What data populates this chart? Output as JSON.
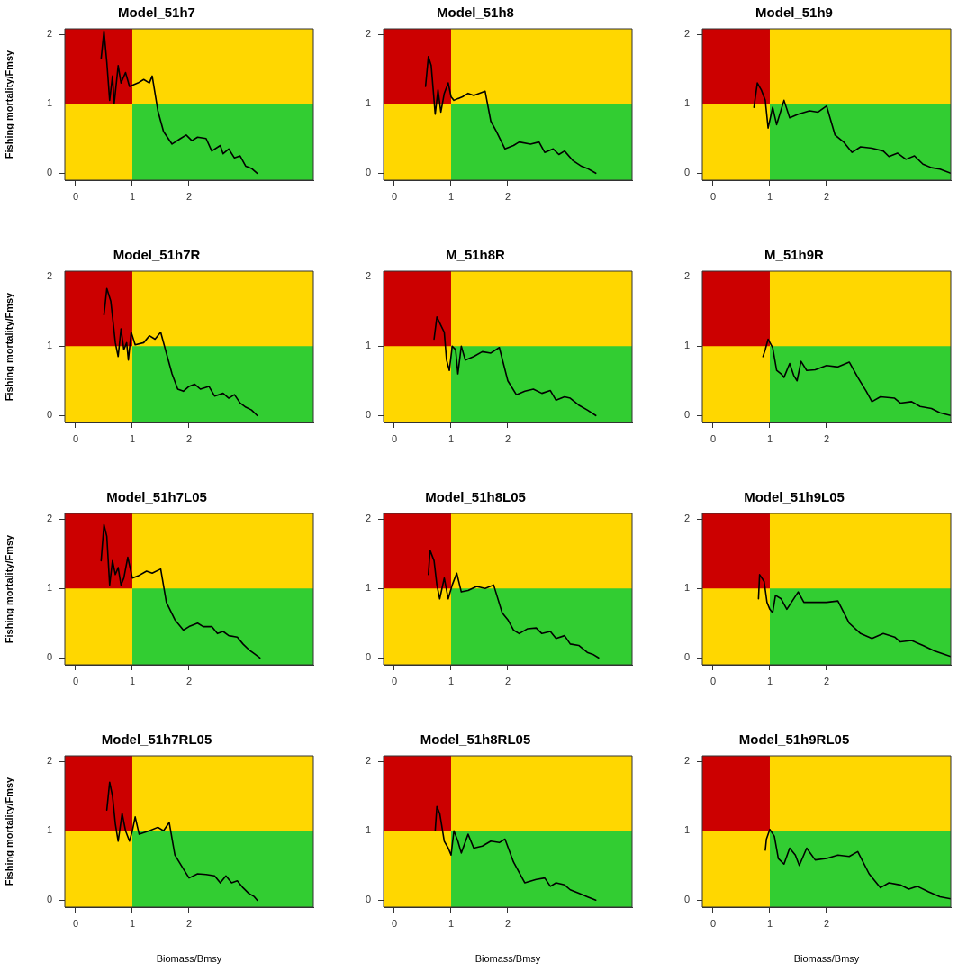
{
  "chart_data": [
    {
      "type": "line",
      "title": "Model_51h7",
      "ylabel": "Fishing mortality/Fmsy",
      "xlim": [
        -0.19,
        4.19
      ],
      "ylim": [
        -0.1,
        2.08
      ],
      "xticks": [
        0,
        1,
        2
      ],
      "yticks": [
        0,
        1,
        2
      ],
      "marker": "none",
      "line_style": "solid",
      "bands": [
        {
          "axis": "y",
          "from": -0.1,
          "to": 2.08,
          "color": "#ffd700"
        },
        {
          "axis": "x",
          "from": -0.19,
          "to": 1,
          "color": "#cc0000"
        },
        {
          "axis": "y",
          "from": -0.1,
          "to": 1,
          "color": "#32cd32"
        }
      ],
      "series": [
        {
          "color": "#000000",
          "x": [
            0.45,
            0.5,
            0.55,
            0.6,
            0.65,
            0.68,
            0.75,
            0.8,
            0.88,
            0.95,
            1.1,
            1.2,
            1.3,
            1.35,
            1.45,
            1.55,
            1.7,
            1.85,
            1.95,
            2.05,
            2.15,
            2.3,
            2.4,
            2.55,
            2.6,
            2.7,
            2.8,
            2.9,
            3.0,
            3.1,
            3.2
          ],
          "values": [
            1.65,
            2.05,
            1.6,
            1.05,
            1.4,
            1.0,
            1.55,
            1.3,
            1.45,
            1.25,
            1.3,
            1.35,
            1.3,
            1.4,
            0.9,
            0.6,
            0.42,
            0.5,
            0.55,
            0.47,
            0.52,
            0.5,
            0.32,
            0.4,
            0.28,
            0.35,
            0.22,
            0.25,
            0.1,
            0.07,
            0.0
          ]
        }
      ]
    },
    {
      "type": "line",
      "title": "Model_51h8",
      "xlim": [
        -0.19,
        4.19
      ],
      "ylim": [
        -0.1,
        2.08
      ],
      "xticks": [
        0,
        1,
        2
      ],
      "yticks": [
        0,
        1,
        2
      ],
      "marker": "none",
      "line_style": "solid",
      "bands": [
        {
          "axis": "y",
          "from": -0.1,
          "to": 2.08,
          "color": "#ffd700"
        },
        {
          "axis": "x",
          "from": -0.19,
          "to": 1,
          "color": "#cc0000"
        },
        {
          "axis": "y",
          "from": -0.1,
          "to": 1,
          "color": "#32cd32"
        }
      ],
      "series": [
        {
          "color": "#000000",
          "x": [
            0.55,
            0.6,
            0.65,
            0.72,
            0.77,
            0.82,
            0.88,
            0.95,
            1.0,
            1.05,
            1.2,
            1.3,
            1.4,
            1.6,
            1.7,
            1.8,
            1.95,
            2.1,
            2.2,
            2.4,
            2.55,
            2.65,
            2.8,
            2.9,
            3.0,
            3.15,
            3.3,
            3.4,
            3.55
          ],
          "values": [
            1.25,
            1.68,
            1.55,
            0.85,
            1.2,
            0.88,
            1.15,
            1.3,
            1.1,
            1.05,
            1.1,
            1.15,
            1.12,
            1.18,
            0.75,
            0.6,
            0.35,
            0.4,
            0.45,
            0.42,
            0.45,
            0.3,
            0.35,
            0.27,
            0.32,
            0.18,
            0.1,
            0.07,
            0.0
          ]
        }
      ]
    },
    {
      "type": "line",
      "title": "Model_51h9",
      "xlim": [
        -0.19,
        4.19
      ],
      "ylim": [
        -0.1,
        2.08
      ],
      "xticks": [
        0,
        1,
        2
      ],
      "yticks": [
        0,
        1,
        2
      ],
      "marker": "none",
      "line_style": "solid",
      "bands": [
        {
          "axis": "y",
          "from": -0.1,
          "to": 2.08,
          "color": "#ffd700"
        },
        {
          "axis": "x",
          "from": -0.19,
          "to": 1,
          "color": "#cc0000"
        },
        {
          "axis": "y",
          "from": -0.1,
          "to": 1,
          "color": "#32cd32"
        }
      ],
      "series": [
        {
          "color": "#000000",
          "x": [
            0.72,
            0.78,
            0.85,
            0.92,
            0.97,
            1.05,
            1.12,
            1.25,
            1.35,
            1.5,
            1.7,
            1.85,
            2.0,
            2.15,
            2.3,
            2.45,
            2.6,
            2.8,
            3.0,
            3.1,
            3.25,
            3.4,
            3.55,
            3.7,
            3.85,
            4.0,
            4.19
          ],
          "values": [
            0.95,
            1.3,
            1.2,
            1.05,
            0.65,
            0.95,
            0.7,
            1.05,
            0.8,
            0.85,
            0.9,
            0.88,
            0.97,
            0.55,
            0.45,
            0.3,
            0.38,
            0.36,
            0.32,
            0.24,
            0.29,
            0.2,
            0.25,
            0.13,
            0.08,
            0.06,
            0.0
          ]
        }
      ]
    },
    {
      "type": "line",
      "title": "Model_51h7R",
      "ylabel": "Fishing mortality/Fmsy",
      "xlim": [
        -0.19,
        4.19
      ],
      "ylim": [
        -0.1,
        2.08
      ],
      "xticks": [
        0,
        1,
        2
      ],
      "yticks": [
        0,
        1,
        2
      ],
      "marker": "none",
      "line_style": "solid",
      "bands": [
        {
          "axis": "y",
          "from": -0.1,
          "to": 2.08,
          "color": "#ffd700"
        },
        {
          "axis": "x",
          "from": -0.19,
          "to": 1,
          "color": "#cc0000"
        },
        {
          "axis": "y",
          "from": -0.1,
          "to": 1,
          "color": "#32cd32"
        }
      ],
      "series": [
        {
          "color": "#000000",
          "x": [
            0.5,
            0.55,
            0.62,
            0.7,
            0.75,
            0.8,
            0.85,
            0.9,
            0.93,
            0.98,
            1.05,
            1.2,
            1.3,
            1.4,
            1.5,
            1.6,
            1.7,
            1.8,
            1.9,
            2.0,
            2.1,
            2.2,
            2.35,
            2.45,
            2.6,
            2.7,
            2.8,
            2.9,
            3.0,
            3.1,
            3.2
          ],
          "values": [
            1.45,
            1.83,
            1.65,
            1.05,
            0.85,
            1.25,
            0.95,
            1.05,
            0.8,
            1.2,
            1.02,
            1.05,
            1.15,
            1.1,
            1.2,
            0.9,
            0.6,
            0.38,
            0.35,
            0.42,
            0.45,
            0.38,
            0.42,
            0.28,
            0.32,
            0.25,
            0.3,
            0.18,
            0.12,
            0.08,
            0.0
          ]
        }
      ]
    },
    {
      "type": "line",
      "title": "M_51h8R",
      "xlim": [
        -0.19,
        4.19
      ],
      "ylim": [
        -0.1,
        2.08
      ],
      "xticks": [
        0,
        1,
        2
      ],
      "yticks": [
        0,
        1,
        2
      ],
      "marker": "none",
      "line_style": "solid",
      "bands": [
        {
          "axis": "y",
          "from": -0.1,
          "to": 2.08,
          "color": "#ffd700"
        },
        {
          "axis": "x",
          "from": -0.19,
          "to": 1,
          "color": "#cc0000"
        },
        {
          "axis": "y",
          "from": -0.1,
          "to": 1,
          "color": "#32cd32"
        }
      ],
      "series": [
        {
          "color": "#000000",
          "x": [
            0.7,
            0.75,
            0.82,
            0.88,
            0.92,
            0.97,
            1.02,
            1.08,
            1.12,
            1.18,
            1.25,
            1.4,
            1.55,
            1.7,
            1.85,
            2.0,
            2.15,
            2.3,
            2.45,
            2.6,
            2.75,
            2.85,
            3.0,
            3.1,
            3.25,
            3.4,
            3.55
          ],
          "values": [
            1.1,
            1.42,
            1.3,
            1.2,
            0.8,
            0.65,
            1.0,
            0.95,
            0.6,
            1.0,
            0.8,
            0.85,
            0.92,
            0.9,
            0.98,
            0.5,
            0.3,
            0.35,
            0.38,
            0.32,
            0.36,
            0.22,
            0.27,
            0.25,
            0.15,
            0.08,
            0.0
          ]
        }
      ]
    },
    {
      "type": "line",
      "title": "M_51h9R",
      "xlim": [
        -0.19,
        4.19
      ],
      "ylim": [
        -0.1,
        2.08
      ],
      "xticks": [
        0,
        1,
        2
      ],
      "yticks": [
        0,
        1,
        2
      ],
      "marker": "none",
      "line_style": "solid",
      "bands": [
        {
          "axis": "y",
          "from": -0.1,
          "to": 2.08,
          "color": "#ffd700"
        },
        {
          "axis": "x",
          "from": -0.19,
          "to": 1,
          "color": "#cc0000"
        },
        {
          "axis": "y",
          "from": -0.1,
          "to": 1,
          "color": "#32cd32"
        }
      ],
      "series": [
        {
          "color": "#000000",
          "x": [
            0.88,
            0.92,
            0.97,
            1.05,
            1.12,
            1.2,
            1.25,
            1.35,
            1.42,
            1.48,
            1.55,
            1.65,
            1.8,
            2.0,
            2.2,
            2.4,
            2.55,
            2.7,
            2.8,
            2.95,
            3.2,
            3.3,
            3.5,
            3.65,
            3.85,
            4.0,
            4.19
          ],
          "values": [
            0.85,
            0.95,
            1.1,
            0.98,
            0.65,
            0.6,
            0.55,
            0.75,
            0.58,
            0.5,
            0.78,
            0.65,
            0.66,
            0.72,
            0.7,
            0.77,
            0.55,
            0.35,
            0.2,
            0.27,
            0.25,
            0.18,
            0.2,
            0.13,
            0.1,
            0.04,
            0.0
          ]
        }
      ]
    },
    {
      "type": "line",
      "title": "Model_51h7L05",
      "ylabel": "Fishing mortality/Fmsy",
      "xlim": [
        -0.19,
        4.19
      ],
      "ylim": [
        -0.1,
        2.08
      ],
      "xticks": [
        0,
        1,
        2
      ],
      "yticks": [
        0,
        1,
        2
      ],
      "marker": "none",
      "line_style": "solid",
      "bands": [
        {
          "axis": "y",
          "from": -0.1,
          "to": 2.08,
          "color": "#ffd700"
        },
        {
          "axis": "x",
          "from": -0.19,
          "to": 1,
          "color": "#cc0000"
        },
        {
          "axis": "y",
          "from": -0.1,
          "to": 1,
          "color": "#32cd32"
        }
      ],
      "series": [
        {
          "color": "#000000",
          "x": [
            0.45,
            0.5,
            0.55,
            0.6,
            0.65,
            0.7,
            0.75,
            0.8,
            0.85,
            0.92,
            1.0,
            1.1,
            1.25,
            1.35,
            1.5,
            1.6,
            1.75,
            1.9,
            2.0,
            2.15,
            2.25,
            2.4,
            2.5,
            2.6,
            2.7,
            2.85,
            2.95,
            3.05,
            3.15,
            3.25
          ],
          "values": [
            1.4,
            1.92,
            1.75,
            1.05,
            1.4,
            1.2,
            1.3,
            1.05,
            1.15,
            1.45,
            1.15,
            1.18,
            1.25,
            1.22,
            1.28,
            0.8,
            0.55,
            0.4,
            0.45,
            0.5,
            0.45,
            0.45,
            0.35,
            0.38,
            0.32,
            0.3,
            0.2,
            0.12,
            0.06,
            0.0
          ]
        }
      ]
    },
    {
      "type": "line",
      "title": "Model_51h8L05",
      "xlim": [
        -0.19,
        4.19
      ],
      "ylim": [
        -0.1,
        2.08
      ],
      "xticks": [
        0,
        1,
        2
      ],
      "yticks": [
        0,
        1,
        2
      ],
      "marker": "none",
      "line_style": "solid",
      "bands": [
        {
          "axis": "y",
          "from": -0.1,
          "to": 2.08,
          "color": "#ffd700"
        },
        {
          "axis": "x",
          "from": -0.19,
          "to": 1,
          "color": "#cc0000"
        },
        {
          "axis": "y",
          "from": -0.1,
          "to": 1,
          "color": "#32cd32"
        }
      ],
      "series": [
        {
          "color": "#000000",
          "x": [
            0.6,
            0.63,
            0.7,
            0.75,
            0.8,
            0.88,
            0.95,
            1.02,
            1.1,
            1.18,
            1.3,
            1.45,
            1.6,
            1.75,
            1.9,
            2.0,
            2.1,
            2.2,
            2.35,
            2.5,
            2.6,
            2.75,
            2.85,
            3.0,
            3.1,
            3.25,
            3.4,
            3.5,
            3.6
          ],
          "values": [
            1.2,
            1.55,
            1.4,
            1.05,
            0.85,
            1.15,
            0.85,
            1.05,
            1.22,
            0.95,
            0.97,
            1.03,
            1.0,
            1.05,
            0.65,
            0.55,
            0.4,
            0.35,
            0.42,
            0.43,
            0.35,
            0.38,
            0.28,
            0.32,
            0.2,
            0.18,
            0.08,
            0.05,
            0.0
          ]
        }
      ]
    },
    {
      "type": "line",
      "title": "Model_51h9L05",
      "xlim": [
        -0.19,
        4.19
      ],
      "ylim": [
        -0.1,
        2.08
      ],
      "xticks": [
        0,
        1,
        2
      ],
      "yticks": [
        0,
        1,
        2
      ],
      "marker": "none",
      "line_style": "solid",
      "bands": [
        {
          "axis": "y",
          "from": -0.1,
          "to": 2.08,
          "color": "#ffd700"
        },
        {
          "axis": "x",
          "from": -0.19,
          "to": 1,
          "color": "#cc0000"
        },
        {
          "axis": "y",
          "from": -0.1,
          "to": 1,
          "color": "#32cd32"
        }
      ],
      "series": [
        {
          "color": "#000000",
          "x": [
            0.8,
            0.82,
            0.9,
            0.95,
            1.0,
            1.05,
            1.1,
            1.2,
            1.3,
            1.5,
            1.6,
            1.8,
            2.0,
            2.2,
            2.4,
            2.6,
            2.8,
            3.0,
            3.2,
            3.3,
            3.5,
            3.7,
            3.9,
            4.05,
            4.19
          ],
          "values": [
            0.85,
            1.2,
            1.1,
            0.8,
            0.7,
            0.65,
            0.9,
            0.85,
            0.7,
            0.95,
            0.8,
            0.8,
            0.8,
            0.82,
            0.5,
            0.35,
            0.28,
            0.35,
            0.3,
            0.23,
            0.25,
            0.18,
            0.1,
            0.06,
            0.02
          ]
        }
      ]
    },
    {
      "type": "line",
      "title": "Model_51h7RL05",
      "xlabel": "Biomass/Bmsy",
      "ylabel": "Fishing mortality/Fmsy",
      "xlim": [
        -0.19,
        4.19
      ],
      "ylim": [
        -0.1,
        2.08
      ],
      "xticks": [
        0,
        1,
        2
      ],
      "yticks": [
        0,
        1,
        2
      ],
      "marker": "none",
      "line_style": "solid",
      "bands": [
        {
          "axis": "y",
          "from": -0.1,
          "to": 2.08,
          "color": "#ffd700"
        },
        {
          "axis": "x",
          "from": -0.19,
          "to": 1,
          "color": "#cc0000"
        },
        {
          "axis": "y",
          "from": -0.1,
          "to": 1,
          "color": "#32cd32"
        }
      ],
      "series": [
        {
          "color": "#000000",
          "x": [
            0.55,
            0.6,
            0.65,
            0.7,
            0.75,
            0.82,
            0.88,
            0.95,
            1.0,
            1.05,
            1.12,
            1.3,
            1.45,
            1.55,
            1.65,
            1.75,
            1.9,
            2.0,
            2.15,
            2.3,
            2.45,
            2.55,
            2.65,
            2.75,
            2.85,
            2.95,
            3.05,
            3.15,
            3.2
          ],
          "values": [
            1.3,
            1.7,
            1.5,
            1.1,
            0.85,
            1.25,
            1.0,
            0.85,
            1.0,
            1.2,
            0.95,
            1.0,
            1.05,
            1.0,
            1.12,
            0.65,
            0.45,
            0.32,
            0.38,
            0.37,
            0.35,
            0.25,
            0.35,
            0.25,
            0.28,
            0.18,
            0.1,
            0.05,
            0.0
          ]
        }
      ]
    },
    {
      "type": "line",
      "title": "Model_51h8RL05",
      "xlabel": "Biomass/Bmsy",
      "xlim": [
        -0.19,
        4.19
      ],
      "ylim": [
        -0.1,
        2.08
      ],
      "xticks": [
        0,
        1,
        2
      ],
      "yticks": [
        0,
        1,
        2
      ],
      "marker": "none",
      "line_style": "solid",
      "bands": [
        {
          "axis": "y",
          "from": -0.1,
          "to": 2.08,
          "color": "#ffd700"
        },
        {
          "axis": "x",
          "from": -0.19,
          "to": 1,
          "color": "#cc0000"
        },
        {
          "axis": "y",
          "from": -0.1,
          "to": 1,
          "color": "#32cd32"
        }
      ],
      "series": [
        {
          "color": "#000000",
          "x": [
            0.72,
            0.75,
            0.8,
            0.88,
            0.95,
            1.0,
            1.05,
            1.12,
            1.18,
            1.3,
            1.4,
            1.55,
            1.7,
            1.85,
            1.95,
            2.1,
            2.3,
            2.5,
            2.65,
            2.75,
            2.85,
            3.0,
            3.1,
            3.25,
            3.4,
            3.55
          ],
          "values": [
            1.0,
            1.35,
            1.25,
            0.85,
            0.75,
            0.65,
            1.0,
            0.85,
            0.68,
            0.95,
            0.75,
            0.78,
            0.85,
            0.83,
            0.88,
            0.55,
            0.25,
            0.3,
            0.32,
            0.2,
            0.25,
            0.22,
            0.15,
            0.1,
            0.05,
            0.0
          ]
        }
      ]
    },
    {
      "type": "line",
      "title": "Model_51h9RL05",
      "xlabel": "Biomass/Bmsy",
      "xlim": [
        -0.19,
        4.19
      ],
      "ylim": [
        -0.1,
        2.08
      ],
      "xticks": [
        0,
        1,
        2
      ],
      "yticks": [
        0,
        1,
        2
      ],
      "marker": "none",
      "line_style": "solid",
      "bands": [
        {
          "axis": "y",
          "from": -0.1,
          "to": 2.08,
          "color": "#ffd700"
        },
        {
          "axis": "x",
          "from": -0.19,
          "to": 1,
          "color": "#cc0000"
        },
        {
          "axis": "y",
          "from": -0.1,
          "to": 1,
          "color": "#32cd32"
        }
      ],
      "series": [
        {
          "color": "#000000",
          "x": [
            0.92,
            0.94,
            1.0,
            1.08,
            1.15,
            1.25,
            1.35,
            1.45,
            1.52,
            1.65,
            1.8,
            2.0,
            2.2,
            2.4,
            2.55,
            2.75,
            2.95,
            3.1,
            3.3,
            3.45,
            3.6,
            3.8,
            4.0,
            4.19
          ],
          "values": [
            0.72,
            0.88,
            1.02,
            0.92,
            0.6,
            0.52,
            0.75,
            0.65,
            0.5,
            0.75,
            0.58,
            0.6,
            0.65,
            0.63,
            0.7,
            0.38,
            0.18,
            0.25,
            0.22,
            0.16,
            0.2,
            0.12,
            0.05,
            0.02
          ]
        }
      ]
    }
  ]
}
